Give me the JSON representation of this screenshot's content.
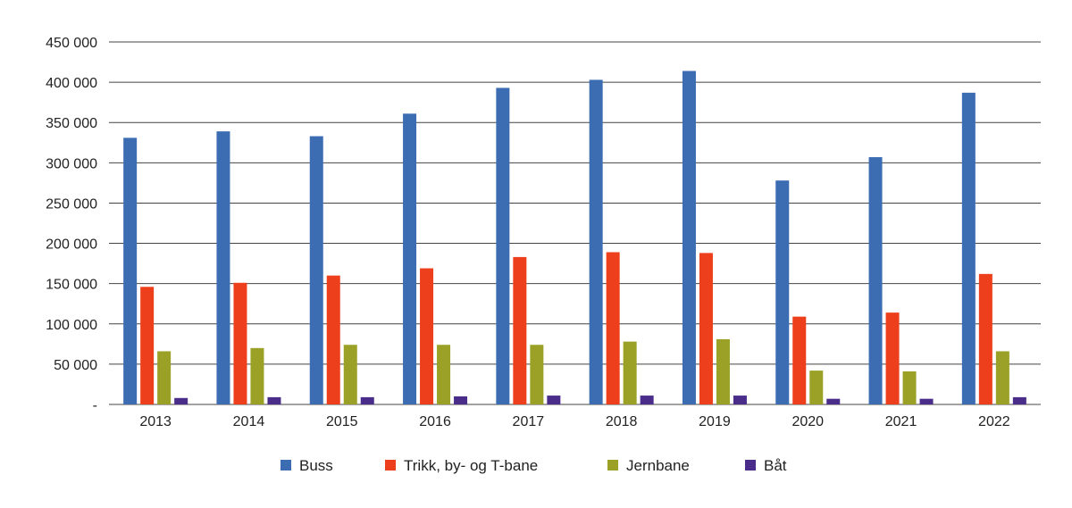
{
  "chart_data": {
    "type": "bar",
    "categories": [
      "2013",
      "2014",
      "2015",
      "2016",
      "2017",
      "2018",
      "2019",
      "2020",
      "2021",
      "2022"
    ],
    "series": [
      {
        "name": "Buss",
        "color": "#3c6db3",
        "values": [
          331000,
          339000,
          333000,
          361000,
          393000,
          403000,
          414000,
          278000,
          307000,
          387000
        ]
      },
      {
        "name": "Trikk, by- og T-bane",
        "color": "#ee3f1c",
        "values": [
          146000,
          151000,
          160000,
          169000,
          183000,
          189000,
          188000,
          109000,
          114000,
          162000
        ]
      },
      {
        "name": "Jernbane",
        "color": "#9aa126",
        "values": [
          66000,
          70000,
          74000,
          74000,
          74000,
          78000,
          81000,
          42000,
          41000,
          66000
        ]
      },
      {
        "name": "Båt",
        "color": "#4a2d8a",
        "values": [
          8000,
          9000,
          9000,
          10000,
          11000,
          11000,
          11000,
          7000,
          7000,
          9000
        ]
      }
    ],
    "ylim": [
      0,
      450000
    ],
    "yticks": [
      0,
      50000,
      100000,
      150000,
      200000,
      250000,
      300000,
      350000,
      400000,
      450000
    ],
    "ytick_labels": [
      "-",
      "50 000",
      "100 000",
      "150 000",
      "200 000",
      "250 000",
      "300 000",
      "350 000",
      "400 000",
      "450 000"
    ],
    "grid": true,
    "legend_position": "bottom"
  }
}
